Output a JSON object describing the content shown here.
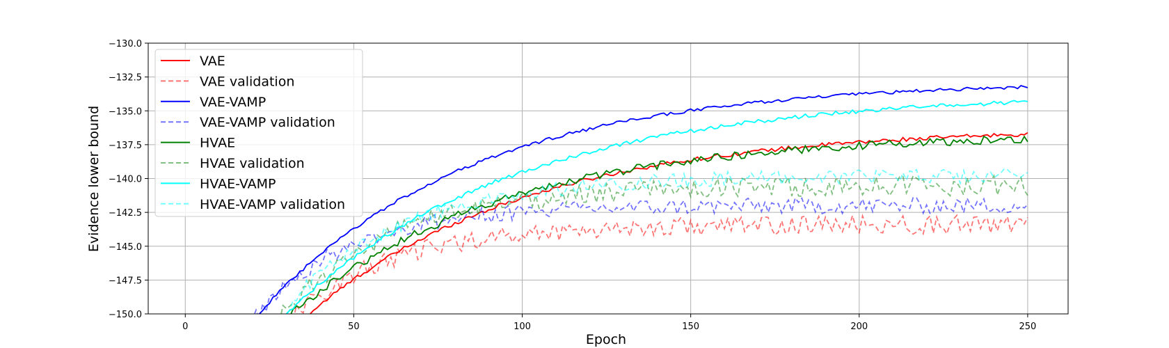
{
  "chart_data": {
    "type": "line",
    "title": "",
    "xlabel": "Epoch",
    "ylabel": "Evidence lower bound",
    "xlim": [
      -11,
      262
    ],
    "ylim": [
      -150,
      -130
    ],
    "xticks": [
      0,
      50,
      100,
      150,
      200,
      250
    ],
    "yticks": [
      -150.0,
      -147.5,
      -145.0,
      -142.5,
      -140.0,
      -137.5,
      -135.0,
      -132.5,
      -130.0
    ],
    "xtick_labels": [
      "0",
      "50",
      "100",
      "150",
      "200",
      "250"
    ],
    "ytick_labels": [
      "−150.0",
      "−147.5",
      "−145.0",
      "−142.5",
      "−140.0",
      "−137.5",
      "−135.0",
      "−132.5",
      "−130.0"
    ],
    "grid": true,
    "legend_position": "top-left",
    "series": [
      {
        "name": "VAE",
        "color": "#ff0000",
        "style": "solid",
        "opacity": 1.0,
        "start": 28,
        "end_value": -136.2,
        "tau": 65,
        "noise": 0.15
      },
      {
        "name": "VAE validation",
        "color": "#ff0000",
        "style": "dashed",
        "opacity": 0.55,
        "start": 25,
        "end_value": -143.4,
        "tau": 30,
        "noise": 0.7
      },
      {
        "name": "VAE-VAMP",
        "color": "#0000ff",
        "style": "solid",
        "opacity": 1.0,
        "start": 15,
        "end_value": -132.8,
        "tau": 62,
        "noise": 0.12
      },
      {
        "name": "VAE-VAMP validation",
        "color": "#0000ff",
        "style": "dashed",
        "opacity": 0.55,
        "start": 15,
        "end_value": -142.0,
        "tau": 28,
        "noise": 0.6
      },
      {
        "name": "HVAE",
        "color": "#008000",
        "style": "solid",
        "opacity": 1.0,
        "start": 23,
        "end_value": -136.7,
        "tau": 62,
        "noise": 0.3
      },
      {
        "name": "HVAE validation",
        "color": "#008000",
        "style": "dashed",
        "opacity": 0.5,
        "start": 23,
        "end_value": -140.5,
        "tau": 33,
        "noise": 0.75
      },
      {
        "name": "HVAE-VAMP",
        "color": "#00ffff",
        "style": "solid",
        "opacity": 1.0,
        "start": 22,
        "end_value": -133.7,
        "tau": 68,
        "noise": 0.15
      },
      {
        "name": "HVAE-VAMP validation",
        "color": "#00ffff",
        "style": "dashed",
        "opacity": 0.55,
        "start": 22,
        "end_value": -139.8,
        "tau": 35,
        "noise": 0.55
      }
    ]
  }
}
